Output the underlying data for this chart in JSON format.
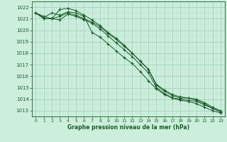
{
  "xlabel": "Graphe pression niveau de la mer (hPa)",
  "xlim": [
    -0.5,
    23.5
  ],
  "ylim": [
    1012.5,
    1022.5
  ],
  "yticks": [
    1013,
    1014,
    1015,
    1016,
    1017,
    1018,
    1019,
    1020,
    1021,
    1022
  ],
  "xticks": [
    0,
    1,
    2,
    3,
    4,
    5,
    6,
    7,
    8,
    9,
    10,
    11,
    12,
    13,
    14,
    15,
    16,
    17,
    18,
    19,
    20,
    21,
    22,
    23
  ],
  "bg_color": "#cceedd",
  "grid_color_minor": "#bbddcc",
  "grid_color_major": "#99ccbb",
  "line_color": "#1a5c28",
  "marker": "+",
  "series": [
    [
      1021.5,
      1021.0,
      1021.0,
      1021.2,
      1021.5,
      1021.3,
      1021.0,
      1020.7,
      1020.3,
      1019.7,
      1019.2,
      1018.6,
      1018.0,
      1017.3,
      1016.6,
      1015.2,
      1014.7,
      1014.3,
      1014.1,
      1014.1,
      1014.0,
      1013.7,
      1013.3,
      1013.0
    ],
    [
      1021.5,
      1021.0,
      1021.0,
      1020.9,
      1021.4,
      1021.2,
      1020.9,
      1020.6,
      1020.1,
      1019.5,
      1018.9,
      1018.3,
      1017.7,
      1017.0,
      1016.3,
      1015.0,
      1014.5,
      1014.1,
      1014.0,
      1013.9,
      1013.8,
      1013.5,
      1013.2,
      1012.9
    ],
    [
      1021.5,
      1021.1,
      1021.5,
      1021.3,
      1021.6,
      1021.5,
      1021.2,
      1019.8,
      1019.4,
      1018.8,
      1018.2,
      1017.6,
      1017.1,
      1016.4,
      1015.6,
      1014.9,
      1014.4,
      1014.1,
      1013.9,
      1013.8,
      1013.6,
      1013.3,
      1013.0,
      1012.8
    ],
    [
      1021.5,
      1021.2,
      1021.0,
      1021.8,
      1021.9,
      1021.7,
      1021.3,
      1020.9,
      1020.4,
      1019.8,
      1019.3,
      1018.7,
      1018.0,
      1017.3,
      1016.6,
      1015.3,
      1014.8,
      1014.4,
      1014.2,
      1014.1,
      1013.9,
      1013.6,
      1013.2,
      1012.9
    ]
  ]
}
